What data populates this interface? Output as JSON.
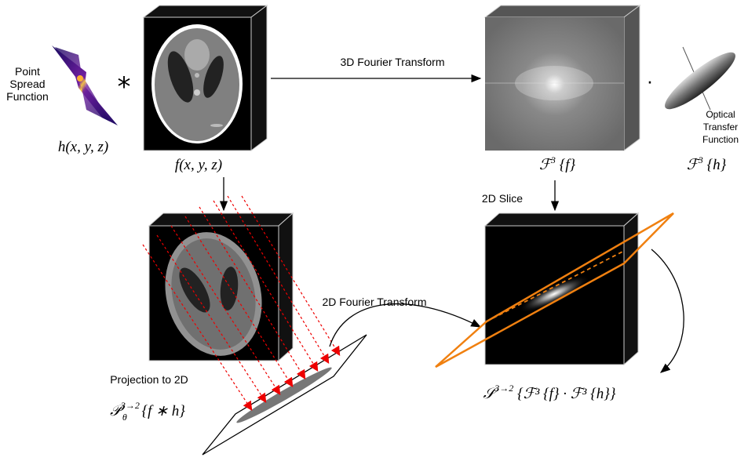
{
  "psf": {
    "label": [
      "Point",
      "Spread",
      "Function"
    ],
    "operator": "*",
    "formula": "h(x, y, z)"
  },
  "object": {
    "formula": "f(x, y, z)"
  },
  "fourier_3d": {
    "label": "3D Fourier Transform"
  },
  "spectrum": {
    "formula": {
      "base": "ℱ",
      "sup": "3",
      "rest": " {f}"
    }
  },
  "otf": {
    "operator": "·",
    "label": [
      "Optical",
      "Transfer",
      "Function"
    ],
    "formula": {
      "base": "ℱ",
      "sup": "3",
      "rest": " {h}"
    }
  },
  "slice": {
    "label": "2D Slice",
    "formula": {
      "base": "𝒮",
      "sup": "3→2",
      "rest": " {ℱ³ {f} · ℱ³ {h}}"
    }
  },
  "fourier_2d": {
    "label": "2D Fourier Transform"
  },
  "projection": {
    "label": "Projection to 2D",
    "formula": {
      "base": "𝒫",
      "sup": "3→2",
      "sub": "θ",
      "rest": " {f ∗ h}"
    }
  }
}
